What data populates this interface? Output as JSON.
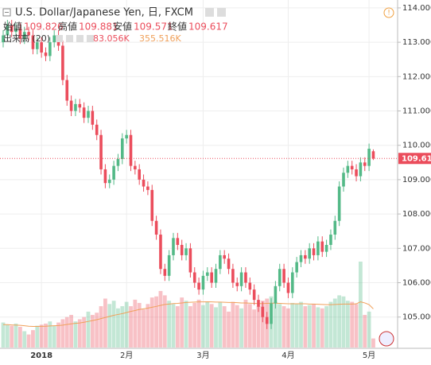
{
  "chart_data": {
    "type": "candlestick",
    "title": "U.S. Dollar/Japanese Yen, 日, FXCM",
    "ohlc_labels": [
      "始値",
      "高値",
      "安値",
      "終値"
    ],
    "categories": [
      null,
      null,
      null,
      null,
      null,
      null,
      null,
      null,
      null,
      "2018",
      null,
      null,
      null,
      null,
      null,
      null,
      null,
      null,
      null,
      null,
      null,
      null,
      null,
      null,
      null,
      null,
      null,
      null,
      null,
      "2月",
      null,
      null,
      null,
      null,
      null,
      null,
      null,
      null,
      null,
      null,
      null,
      null,
      null,
      null,
      null,
      null,
      null,
      "3月",
      null,
      null,
      null,
      null,
      null,
      null,
      null,
      null,
      null,
      null,
      null,
      null,
      null,
      null,
      null,
      null,
      null,
      null,
      null,
      "4月",
      null,
      null,
      null,
      null,
      null,
      null,
      null,
      null,
      null,
      null,
      null,
      null,
      null,
      null,
      null,
      null,
      null,
      null,
      "5月",
      null
    ],
    "open": [
      113.0,
      113.2,
      113.5,
      113.3,
      113.4,
      113.1,
      113.3,
      113.2,
      112.8,
      113.0,
      112.7,
      112.6,
      113.0,
      113.2,
      112.9,
      111.9,
      111.3,
      111.0,
      111.2,
      111.1,
      110.8,
      111.0,
      110.6,
      110.3,
      109.3,
      108.9,
      109.0,
      109.4,
      109.6,
      110.2,
      110.3,
      109.4,
      109.3,
      109.0,
      108.8,
      108.7,
      107.8,
      107.4,
      106.4,
      106.2,
      106.8,
      107.3,
      107.1,
      106.8,
      107.0,
      106.3,
      106.0,
      105.8,
      106.2,
      106.3,
      106.0,
      106.4,
      106.8,
      106.7,
      106.4,
      106.0,
      105.9,
      106.3,
      106.0,
      105.8,
      105.5,
      105.3,
      105.0,
      104.8,
      105.4,
      105.9,
      106.4,
      106.0,
      105.7,
      106.3,
      106.6,
      106.8,
      106.7,
      107.0,
      106.8,
      107.2,
      106.9,
      107.1,
      107.4,
      107.8,
      108.8,
      109.2,
      109.4,
      109.3,
      109.1,
      109.5,
      109.4,
      109.826
    ],
    "high": [
      113.35,
      113.65,
      113.65,
      113.55,
      113.55,
      113.45,
      113.45,
      113.35,
      113.15,
      113.15,
      112.85,
      113.15,
      113.35,
      113.35,
      113.05,
      112.05,
      111.45,
      111.35,
      111.35,
      111.25,
      111.15,
      111.15,
      110.75,
      110.45,
      109.45,
      109.15,
      109.55,
      109.75,
      110.35,
      110.45,
      110.45,
      109.55,
      109.45,
      109.15,
      108.95,
      108.85,
      107.95,
      107.55,
      106.55,
      106.95,
      107.45,
      107.45,
      107.25,
      107.15,
      107.15,
      106.45,
      106.15,
      106.35,
      106.45,
      106.45,
      106.55,
      106.95,
      106.95,
      106.85,
      106.55,
      106.15,
      106.45,
      106.45,
      106.15,
      105.95,
      105.65,
      105.45,
      105.15,
      105.55,
      106.05,
      106.55,
      106.55,
      106.15,
      106.45,
      106.75,
      106.95,
      106.95,
      107.15,
      107.15,
      107.35,
      107.35,
      107.25,
      107.55,
      107.95,
      108.95,
      109.35,
      109.55,
      109.55,
      109.45,
      109.65,
      109.65,
      110.05,
      109.881
    ],
    "low": [
      112.85,
      113.05,
      113.15,
      113.15,
      112.95,
      112.95,
      113.05,
      112.65,
      112.65,
      112.55,
      112.45,
      112.45,
      112.85,
      112.75,
      111.75,
      111.15,
      110.85,
      110.85,
      110.95,
      110.65,
      110.65,
      110.45,
      110.15,
      109.15,
      108.75,
      108.75,
      108.85,
      109.25,
      109.45,
      110.05,
      109.25,
      109.15,
      108.85,
      108.65,
      108.55,
      107.65,
      107.25,
      106.25,
      106.05,
      106.05,
      106.65,
      106.95,
      106.65,
      106.65,
      106.15,
      105.85,
      105.65,
      105.65,
      106.05,
      105.85,
      105.85,
      106.25,
      106.55,
      106.25,
      105.85,
      105.75,
      105.75,
      105.85,
      105.65,
      105.35,
      105.15,
      104.85,
      104.65,
      104.65,
      105.25,
      105.75,
      105.85,
      105.55,
      105.55,
      106.15,
      106.45,
      106.55,
      106.55,
      106.65,
      106.65,
      106.75,
      106.75,
      106.95,
      107.25,
      107.65,
      108.65,
      109.05,
      109.15,
      108.95,
      108.95,
      109.25,
      109.25,
      109.571
    ],
    "close": [
      113.2,
      113.5,
      113.3,
      113.4,
      113.1,
      113.3,
      113.2,
      112.8,
      113.0,
      112.7,
      112.6,
      113.0,
      113.2,
      112.9,
      111.9,
      111.3,
      111.0,
      111.2,
      111.1,
      110.8,
      111.0,
      110.6,
      110.3,
      109.3,
      108.9,
      109.0,
      109.4,
      109.6,
      110.2,
      110.3,
      109.4,
      109.3,
      109.0,
      108.8,
      108.7,
      107.8,
      107.4,
      106.4,
      106.2,
      106.8,
      107.3,
      107.1,
      106.8,
      107.0,
      106.3,
      106.0,
      105.8,
      106.2,
      106.3,
      106.0,
      106.4,
      106.8,
      106.7,
      106.4,
      106.0,
      105.9,
      106.3,
      106.0,
      105.8,
      105.5,
      105.3,
      105.0,
      104.8,
      105.4,
      105.9,
      106.4,
      106.0,
      105.7,
      106.3,
      106.6,
      106.8,
      106.7,
      107.0,
      106.8,
      107.2,
      106.9,
      107.1,
      107.4,
      107.8,
      108.8,
      109.2,
      109.4,
      109.3,
      109.1,
      109.5,
      109.4,
      109.9,
      109.617
    ],
    "volume_name": "出来高 (20)",
    "volume": [
      230,
      210,
      200,
      220,
      190,
      150,
      120,
      160,
      200,
      210,
      220,
      240,
      200,
      230,
      260,
      280,
      300,
      240,
      260,
      280,
      330,
      300,
      320,
      380,
      450,
      400,
      430,
      360,
      380,
      420,
      380,
      440,
      410,
      350,
      400,
      460,
      470,
      520,
      480,
      430,
      400,
      380,
      460,
      430,
      380,
      410,
      440,
      390,
      420,
      400,
      370,
      420,
      380,
      330,
      420,
      390,
      360,
      440,
      400,
      350,
      380,
      430,
      450,
      470,
      420,
      400,
      380,
      360,
      410,
      400,
      420,
      380,
      390,
      400,
      370,
      360,
      380,
      420,
      450,
      480,
      470,
      430,
      420,
      400,
      790,
      300,
      330,
      83.056
    ],
    "volume_ma": [
      210,
      210,
      208,
      206,
      204,
      200,
      196,
      194,
      194,
      195,
      196,
      198,
      200,
      202,
      206,
      212,
      218,
      222,
      226,
      232,
      240,
      248,
      256,
      266,
      276,
      286,
      296,
      304,
      312,
      322,
      332,
      340,
      350,
      356,
      362,
      370,
      378,
      388,
      396,
      400,
      404,
      406,
      410,
      414,
      416,
      418,
      420,
      420,
      421,
      420,
      418,
      418,
      416,
      414,
      414,
      412,
      410,
      410,
      408,
      406,
      404,
      404,
      406,
      408,
      408,
      406,
      404,
      402,
      402,
      402,
      402,
      402,
      400,
      400,
      398,
      396,
      394,
      394,
      396,
      398,
      400,
      400,
      400,
      402,
      420,
      410,
      395,
      355.516
    ],
    "readout": {
      "volume": {
        "value": 83.056,
        "label": "83.056K"
      },
      "volume_ma": {
        "value": 355.516,
        "label": "355.516K"
      }
    },
    "up_color": "#53b987",
    "down_color": "#eb4d5c",
    "ma_color": "#f0a05a",
    "ylim": [
      104.09,
      114.23
    ],
    "yticks": [
      {
        "value": 105,
        "label": "105.000"
      },
      {
        "value": 106,
        "label": "106.000"
      },
      {
        "value": 107,
        "label": "107.000"
      },
      {
        "value": 108,
        "label": "108.000"
      },
      {
        "value": 109,
        "label": "109.000"
      },
      {
        "value": 110,
        "label": "110.000"
      },
      {
        "value": 111,
        "label": "111.000"
      },
      {
        "value": 112,
        "label": "112.000"
      },
      {
        "value": 113,
        "label": "113.000"
      },
      {
        "value": 114,
        "label": "114.000"
      }
    ],
    "grid": true
  }
}
